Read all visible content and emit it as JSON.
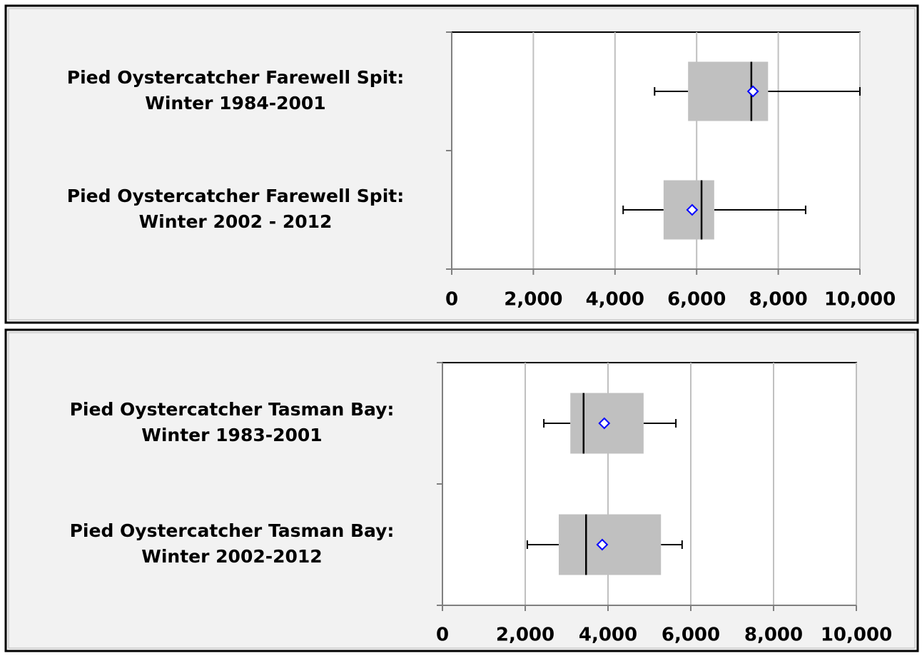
{
  "chart_data": [
    {
      "type": "box",
      "fill": "#c0c0c0",
      "mean_color": "#0000ff",
      "grid": true,
      "xlim": [
        0,
        10000
      ],
      "xticks": [
        0,
        {
          "value": 2000,
          "label": "2,000"
        },
        {
          "value": 4000,
          "label": "4,000"
        },
        {
          "value": 6000,
          "label": "6,000"
        },
        {
          "value": 8000,
          "label": "8,000"
        },
        {
          "value": 10000,
          "label": "10,000"
        }
      ],
      "categories": [
        [
          "Pied Oystercatcher Farewell Spit:",
          "Winter 1984-2001"
        ],
        [
          "Pied Oystercatcher Farewell Spit:",
          "Winter 2002 - 2012"
        ]
      ],
      "boxes": [
        {
          "min": 4970,
          "q1": 5790,
          "median": 7340,
          "mean": 7380,
          "q3": 7750,
          "max": 10000
        },
        {
          "min": 4200,
          "q1": 5190,
          "median": 6120,
          "mean": 5890,
          "q3": 6430,
          "max": 8670
        }
      ]
    },
    {
      "type": "box",
      "fill": "#c0c0c0",
      "mean_color": "#0000ff",
      "grid": true,
      "xlim": [
        0,
        10000
      ],
      "xticks": [
        0,
        {
          "value": 2000,
          "label": "2,000"
        },
        {
          "value": 4000,
          "label": "4,000"
        },
        {
          "value": 6000,
          "label": "6,000"
        },
        {
          "value": 8000,
          "label": "8,000"
        },
        {
          "value": 10000,
          "label": "10,000"
        }
      ],
      "categories": [
        [
          "Pied Oystercatcher Tasman Bay:",
          "Winter  1983-2001"
        ],
        [
          "Pied Oystercatcher Tasman Bay:",
          "Winter  2002-2012"
        ]
      ],
      "boxes": [
        {
          "min": 2450,
          "q1": 3090,
          "median": 3410,
          "mean": 3910,
          "q3": 4860,
          "max": 5640
        },
        {
          "min": 2050,
          "q1": 2810,
          "median": 3470,
          "mean": 3860,
          "q3": 5280,
          "max": 5790
        }
      ]
    }
  ]
}
